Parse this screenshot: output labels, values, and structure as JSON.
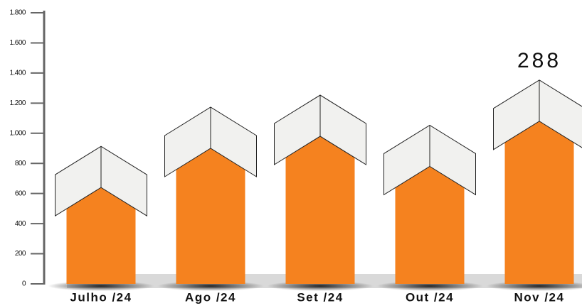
{
  "chart_data": {
    "type": "bar",
    "categories": [
      "Julho /24",
      "Ago /24",
      "Set /24",
      "Out /24",
      "Nov /24"
    ],
    "values": [
      640,
      900,
      980,
      780,
      1080
    ],
    "color": "#f5821f",
    "roof_color": "#f1f1ef",
    "annotation": "288",
    "ylim": [
      0,
      1800
    ],
    "yticks": [
      0,
      200,
      400,
      600,
      800,
      {
        "value": 1000,
        "label": "1.000"
      },
      {
        "value": 1200,
        "label": "1.200"
      },
      {
        "value": 1400,
        "label": "1.400"
      },
      {
        "value": 1600,
        "label": "1.600"
      },
      {
        "value": 1800,
        "label": "1.800"
      }
    ]
  }
}
